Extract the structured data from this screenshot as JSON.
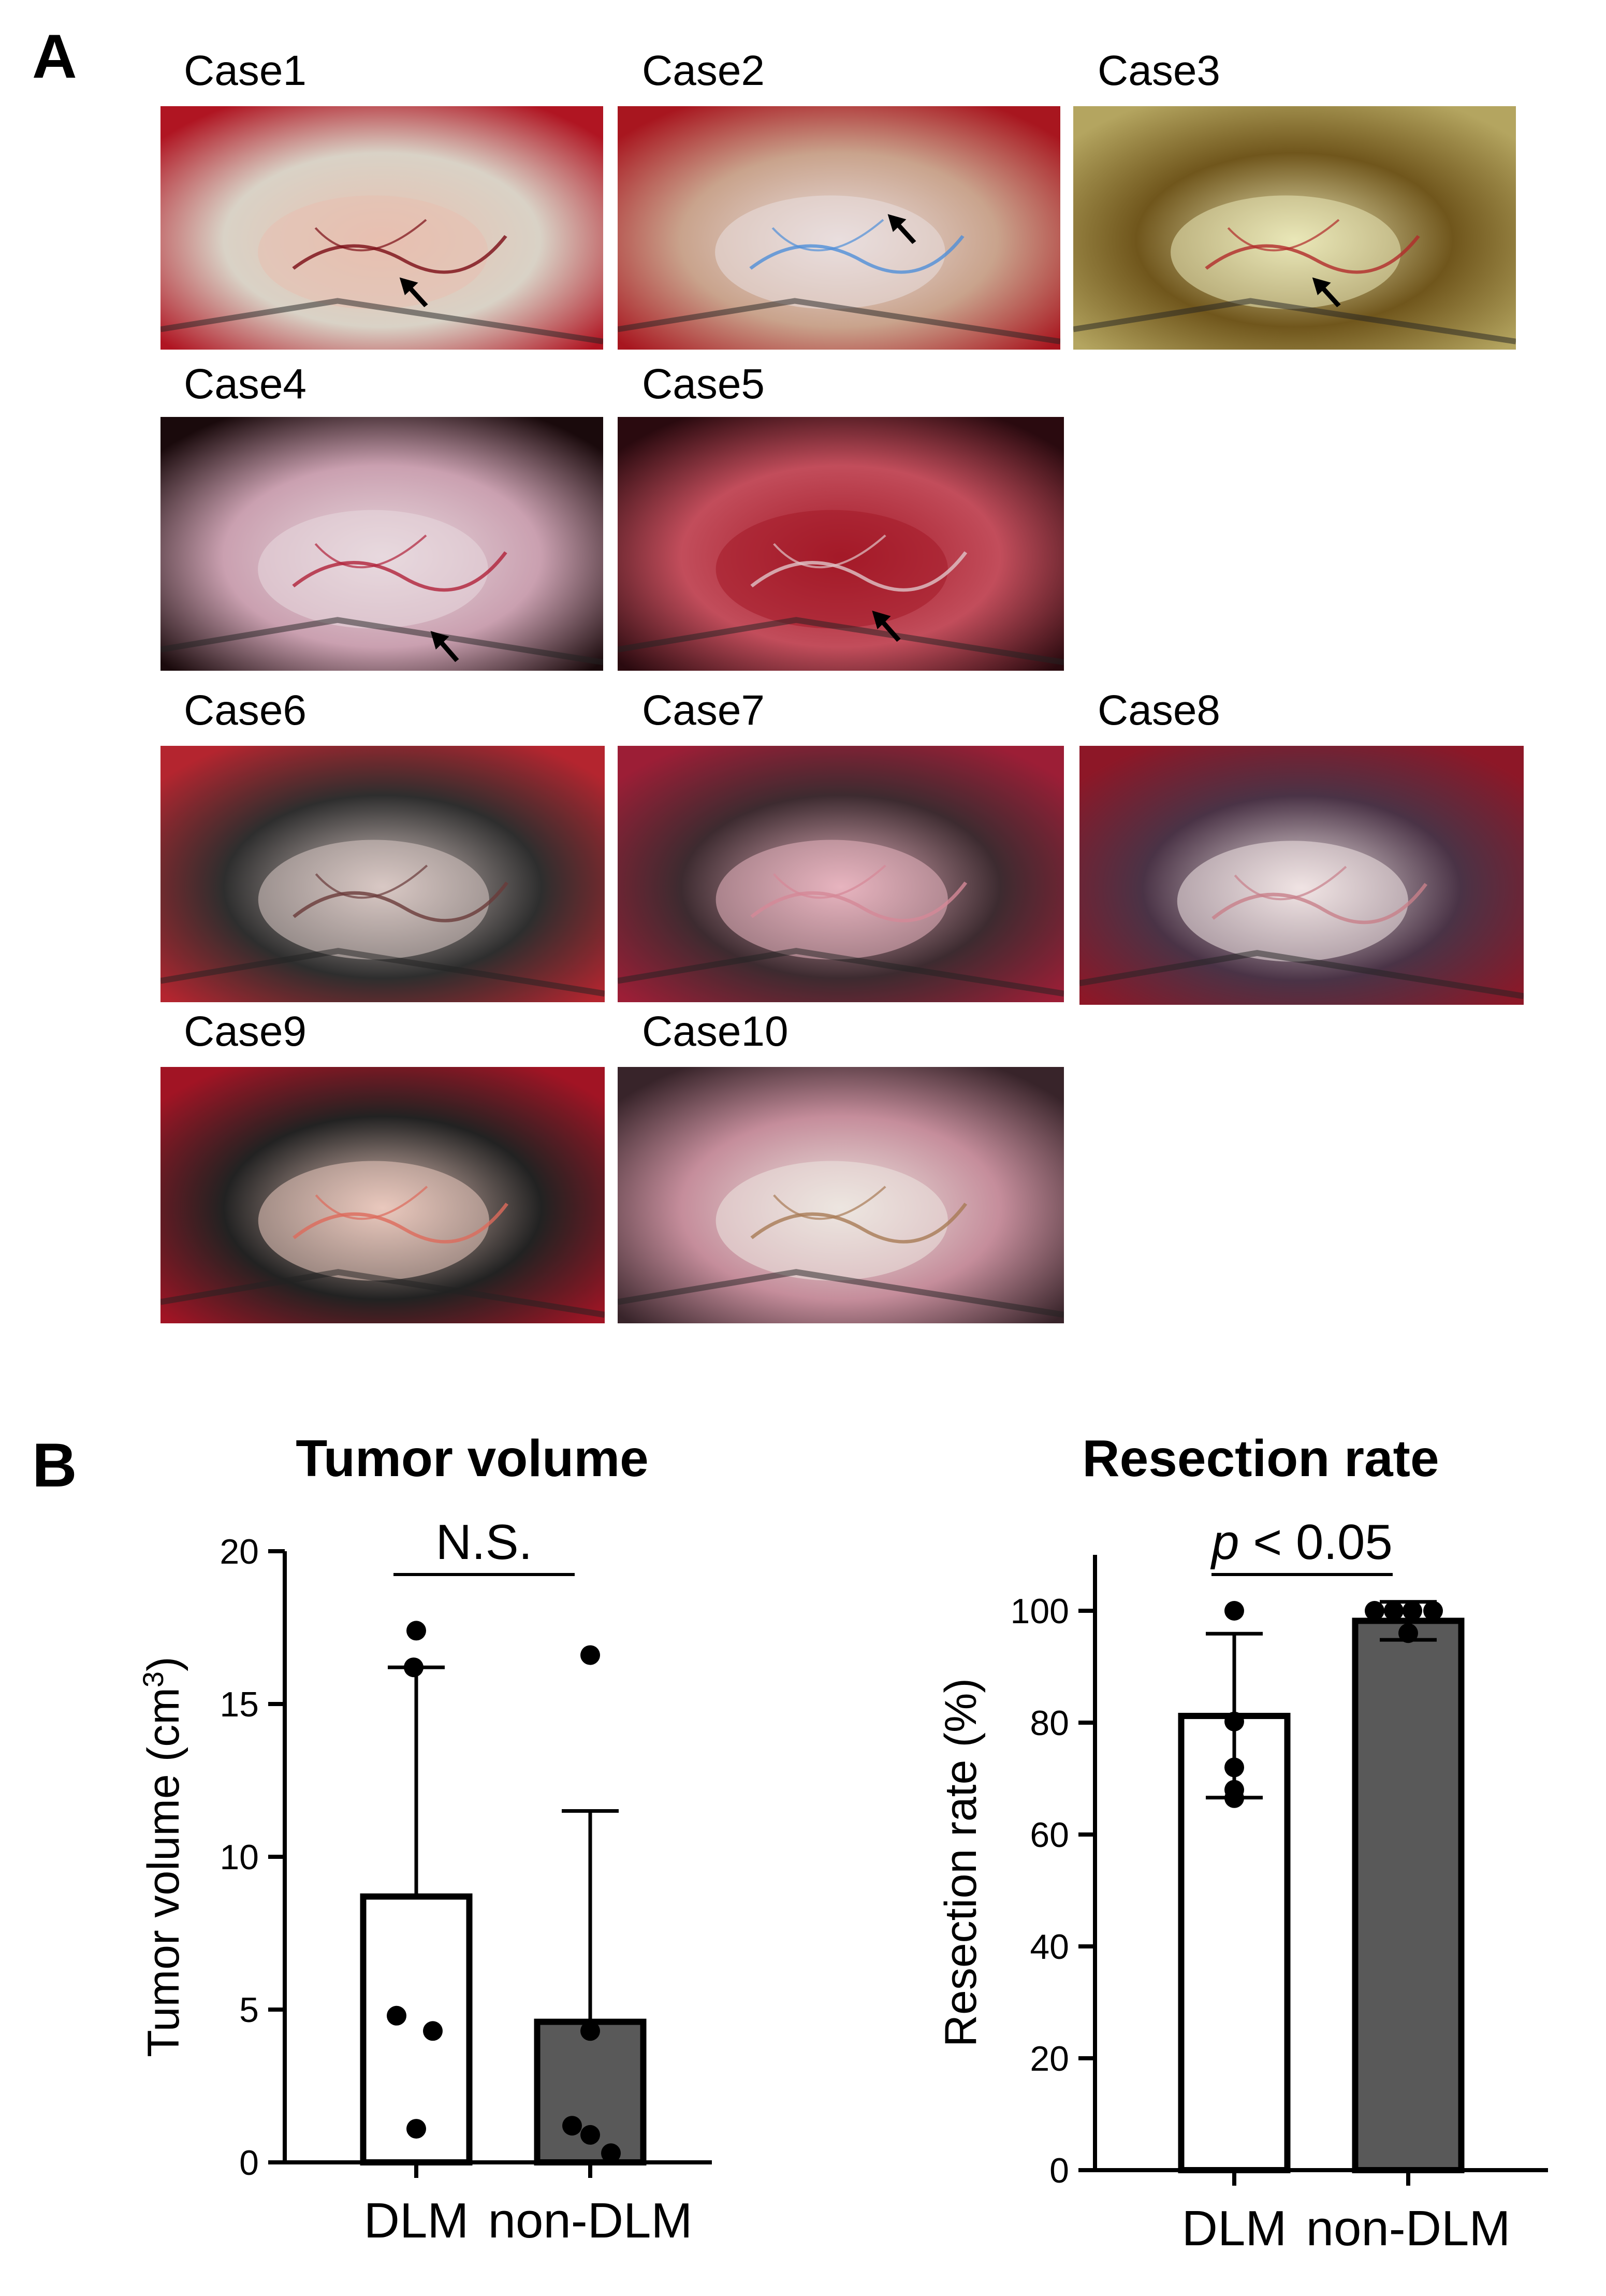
{
  "panel_a": {
    "letter": "A",
    "cases": [
      {
        "label": "Case1",
        "palette": "red",
        "arrow": true
      },
      {
        "label": "Case2",
        "palette": "red-blue",
        "arrow": true
      },
      {
        "label": "Case3",
        "palette": "yellow",
        "arrow": true
      },
      {
        "label": "Case4",
        "palette": "dark-white",
        "arrow": true
      },
      {
        "label": "Case5",
        "palette": "dark-red",
        "arrow": true
      },
      {
        "label": "Case6",
        "palette": "red-grey",
        "arrow": false
      },
      {
        "label": "Case7",
        "palette": "pink",
        "arrow": false
      },
      {
        "label": "Case8",
        "palette": "red-white",
        "arrow": false
      },
      {
        "label": "Case9",
        "palette": "red-yellow",
        "arrow": false
      },
      {
        "label": "Case10",
        "palette": "dark-gauze",
        "arrow": false
      }
    ]
  },
  "panel_b": {
    "letter": "B"
  },
  "chart_data": [
    {
      "type": "bar",
      "title": "Tumor volume",
      "ylabel": "Tumor volume (cm³)",
      "ylabel_main": "Tumor volume (cm",
      "ylabel_sup": "3",
      "ylabel_close": ")",
      "ylim": [
        0,
        20
      ],
      "yticks": [
        0,
        5,
        10,
        15,
        20
      ],
      "categories": [
        "DLM",
        "non-DLM"
      ],
      "means": [
        8.7,
        4.6
      ],
      "sd_upper": [
        16.2,
        11.5
      ],
      "points": [
        [
          17.4,
          16.2,
          4.8,
          4.3,
          1.1
        ],
        [
          16.6,
          4.3,
          1.2,
          0.3,
          0.9
        ]
      ],
      "bar_colors": [
        "#ffffff",
        "#595959"
      ],
      "significance": "N.S.",
      "sig_prefix": "",
      "sig_suffix": "N.S."
    },
    {
      "type": "bar",
      "title": "Resection rate",
      "ylabel": "Resection rate (%)",
      "ylim": [
        0,
        110
      ],
      "yticks": [
        0,
        20,
        40,
        60,
        80,
        100
      ],
      "categories": [
        "DLM",
        "non-DLM"
      ],
      "means": [
        81.2,
        98.2
      ],
      "sd_upper": [
        95.9,
        101.6
      ],
      "sd_lower": [
        66.6,
        94.8
      ],
      "points": [
        [
          100,
          80.2,
          72,
          68,
          66.5
        ],
        [
          100,
          100,
          100,
          100,
          96
        ]
      ],
      "bar_colors": [
        "#ffffff",
        "#595959"
      ],
      "significance": "p < 0.05",
      "sig_prefix": "p",
      "sig_suffix": " < 0.05"
    }
  ]
}
